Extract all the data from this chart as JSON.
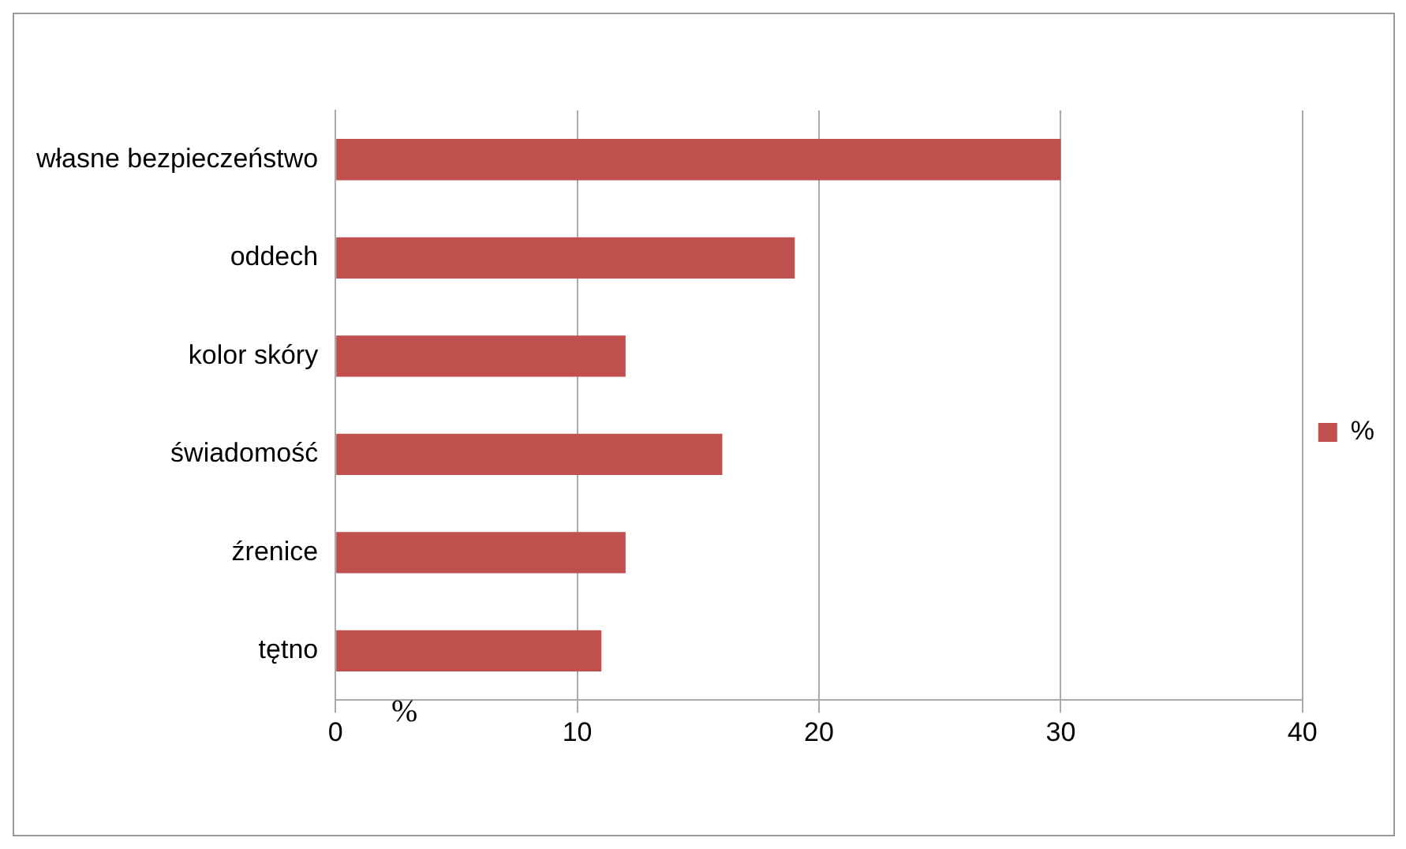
{
  "chart_data": {
    "type": "bar",
    "orientation": "horizontal",
    "xlabel": "%",
    "categories": [
      "własne bezpieczeństwo",
      "oddech",
      "kolor skóry",
      "świadomość",
      "źrenice",
      "tętno"
    ],
    "series": [
      {
        "name": "%",
        "color": "#c0504d",
        "values": [
          30,
          19,
          12,
          16,
          12,
          11
        ]
      }
    ],
    "xlim": [
      0,
      40
    ],
    "xticks": [
      0,
      10,
      20,
      30,
      40
    ],
    "grid": "x",
    "legend": "right"
  }
}
